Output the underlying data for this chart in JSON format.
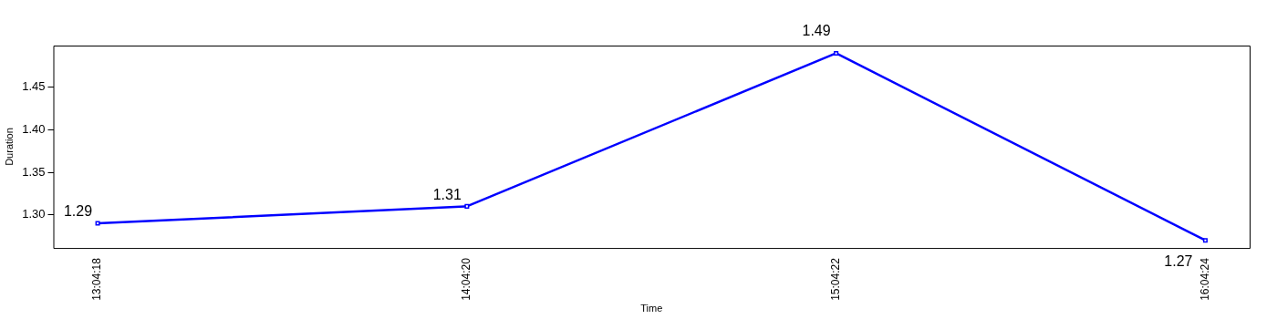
{
  "chart_data": {
    "type": "line",
    "xlabel": "Time",
    "ylabel": "Duration",
    "categories": [
      "13:04:18",
      "14:04:20",
      "15:04:22",
      "16:04:24"
    ],
    "series": [
      {
        "color": "#0000ff",
        "values": [
          1.29,
          1.31,
          1.49,
          1.27
        ]
      }
    ],
    "ylim": [
      1.261,
      1.499
    ],
    "yticks": [
      {
        "value": 1.3,
        "label": "1.30"
      },
      {
        "value": 1.35,
        "label": "1.35"
      },
      {
        "value": 1.4,
        "label": "1.40"
      },
      {
        "value": 1.45,
        "label": "1.45"
      }
    ],
    "data_labels": true,
    "marker": "square",
    "line_style": "solid",
    "grid": false,
    "legend": false
  }
}
